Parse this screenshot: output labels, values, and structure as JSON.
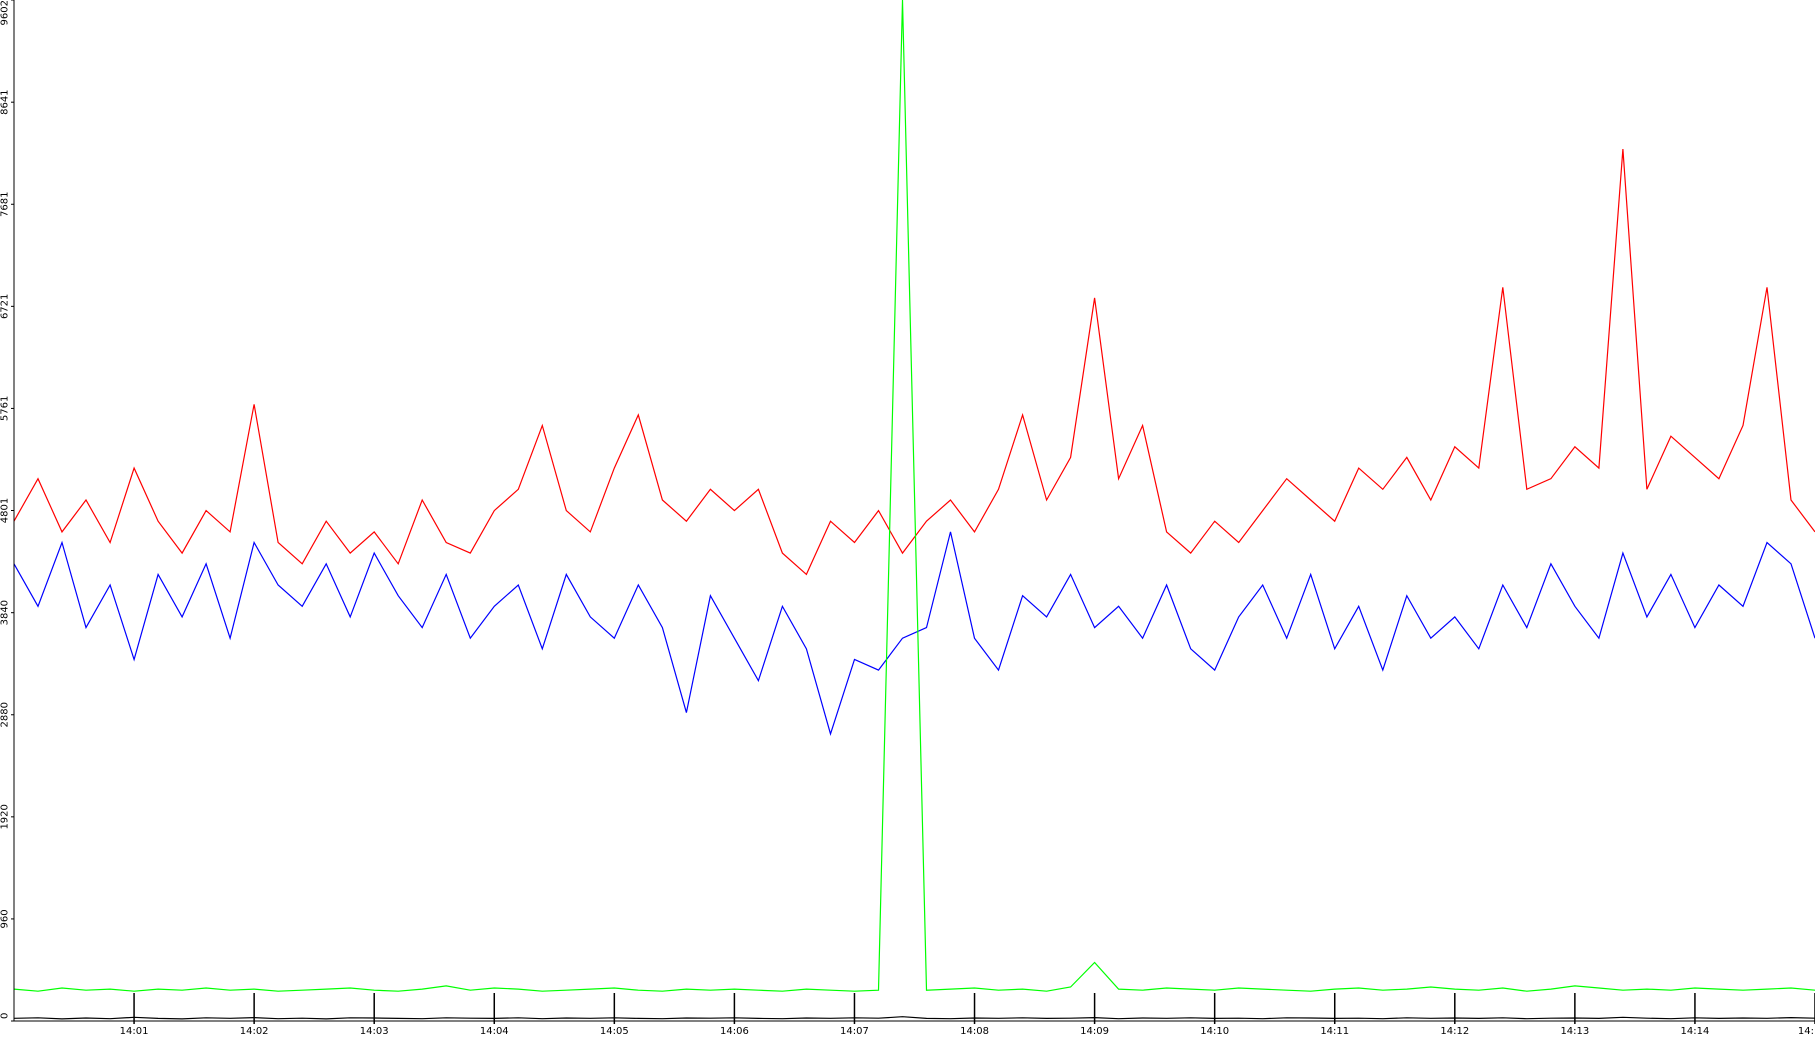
{
  "chart_data": {
    "type": "line",
    "x": [
      840,
      840.2,
      840.4,
      840.6,
      840.8,
      841,
      841.2,
      841.4,
      841.6,
      841.8,
      842,
      842.2,
      842.4,
      842.6,
      842.8,
      843,
      843.2,
      843.4,
      843.6,
      843.8,
      844,
      844.2,
      844.4,
      844.6,
      844.8,
      845,
      845.2,
      845.4,
      845.6,
      845.8,
      846,
      846.2,
      846.4,
      846.6,
      846.8,
      847,
      847.2,
      847.4,
      847.6,
      847.8,
      848,
      848.2,
      848.4,
      848.6,
      848.8,
      849,
      849.2,
      849.4,
      849.6,
      849.8,
      850,
      850.2,
      850.4,
      850.6,
      850.8,
      851,
      851.2,
      851.4,
      851.6,
      851.8,
      852,
      852.2,
      852.4,
      852.6,
      852.8,
      853,
      853.2,
      853.4,
      853.6,
      853.8,
      854,
      854.2,
      854.4,
      854.6,
      854.8,
      855
    ],
    "series": [
      {
        "color": "#ff0000",
        "values": [
          4700,
          5100,
          4600,
          4900,
          4500,
          5200,
          4700,
          4400,
          4800,
          4600,
          5800,
          4500,
          4300,
          4700,
          4400,
          4600,
          4300,
          4900,
          4500,
          4400,
          4800,
          5000,
          5600,
          4800,
          4600,
          5200,
          5700,
          4900,
          4700,
          5000,
          4800,
          5000,
          4400,
          4200,
          4700,
          4500,
          4800,
          4400,
          4700,
          4900,
          4600,
          5000,
          5700,
          4900,
          5300,
          6800,
          5100,
          5600,
          4600,
          4400,
          4700,
          4500,
          4800,
          5100,
          4900,
          4700,
          5200,
          5000,
          5300,
          4900,
          5400,
          5200,
          6900,
          5000,
          5100,
          5400,
          5200,
          8200,
          5000,
          5500,
          5300,
          5100,
          5600,
          6900,
          4900,
          4600
        ]
      },
      {
        "color": "#0000ff",
        "values": [
          4300,
          3900,
          4500,
          3700,
          4100,
          3400,
          4200,
          3800,
          4300,
          3600,
          4500,
          4100,
          3900,
          4300,
          3800,
          4400,
          4000,
          3700,
          4200,
          3600,
          3900,
          4100,
          3500,
          4200,
          3800,
          3600,
          4100,
          3700,
          2900,
          4000,
          3600,
          3200,
          3900,
          3500,
          2700,
          3400,
          3300,
          3600,
          3700,
          4600,
          3600,
          3300,
          4000,
          3800,
          4200,
          3700,
          3900,
          3600,
          4100,
          3500,
          3300,
          3800,
          4100,
          3600,
          4200,
          3500,
          3900,
          3300,
          4000,
          3600,
          3800,
          3500,
          4100,
          3700,
          4300,
          3900,
          3600,
          4400,
          3800,
          4200,
          3700,
          4100,
          3900,
          4500,
          4300,
          3600
        ]
      },
      {
        "color": "#00ff00",
        "values": [
          300,
          280,
          310,
          290,
          300,
          280,
          300,
          290,
          310,
          290,
          300,
          280,
          290,
          300,
          310,
          290,
          280,
          300,
          330,
          290,
          310,
          300,
          280,
          290,
          300,
          310,
          290,
          280,
          300,
          290,
          300,
          290,
          280,
          300,
          290,
          280,
          290,
          9602,
          290,
          300,
          310,
          290,
          300,
          280,
          320,
          550,
          300,
          290,
          310,
          300,
          290,
          310,
          300,
          290,
          280,
          300,
          310,
          290,
          300,
          320,
          300,
          290,
          310,
          280,
          300,
          330,
          310,
          290,
          300,
          290,
          310,
          300,
          290,
          300,
          310,
          290
        ]
      },
      {
        "color": "#000000",
        "values": [
          25,
          30,
          20,
          28,
          22,
          35,
          24,
          20,
          30,
          25,
          32,
          22,
          26,
          20,
          30,
          28,
          24,
          22,
          30,
          26,
          24,
          30,
          22,
          28,
          25,
          30,
          24,
          22,
          28,
          26,
          30,
          24,
          22,
          28,
          25,
          30,
          26,
          40,
          24,
          22,
          28,
          25,
          30,
          24,
          26,
          32,
          22,
          28,
          25,
          30,
          24,
          26,
          22,
          30,
          28,
          24,
          26,
          22,
          30,
          25,
          28,
          24,
          30,
          22,
          26,
          28,
          24,
          35,
          26,
          22,
          30,
          24,
          28,
          25,
          32,
          26
        ]
      }
    ],
    "xlim": [
      840,
      855
    ],
    "xticks": [
      {
        "value": 841,
        "label": "14:01"
      },
      {
        "value": 842,
        "label": "14:02"
      },
      {
        "value": 843,
        "label": "14:03"
      },
      {
        "value": 844,
        "label": "14:04"
      },
      {
        "value": 845,
        "label": "14:05"
      },
      {
        "value": 846,
        "label": "14:06"
      },
      {
        "value": 847,
        "label": "14:07"
      },
      {
        "value": 848,
        "label": "14:08"
      },
      {
        "value": 849,
        "label": "14:09"
      },
      {
        "value": 850,
        "label": "14:10"
      },
      {
        "value": 851,
        "label": "14:11"
      },
      {
        "value": 852,
        "label": "14:12"
      },
      {
        "value": 853,
        "label": "14:13"
      },
      {
        "value": 854,
        "label": "14:14"
      },
      {
        "value": 855,
        "label": "14:"
      }
    ],
    "ylim": [
      0,
      9602
    ],
    "yticks": [
      0,
      960,
      1920,
      2880,
      3840,
      4801,
      5761,
      6721,
      7681,
      8641,
      9602
    ]
  }
}
